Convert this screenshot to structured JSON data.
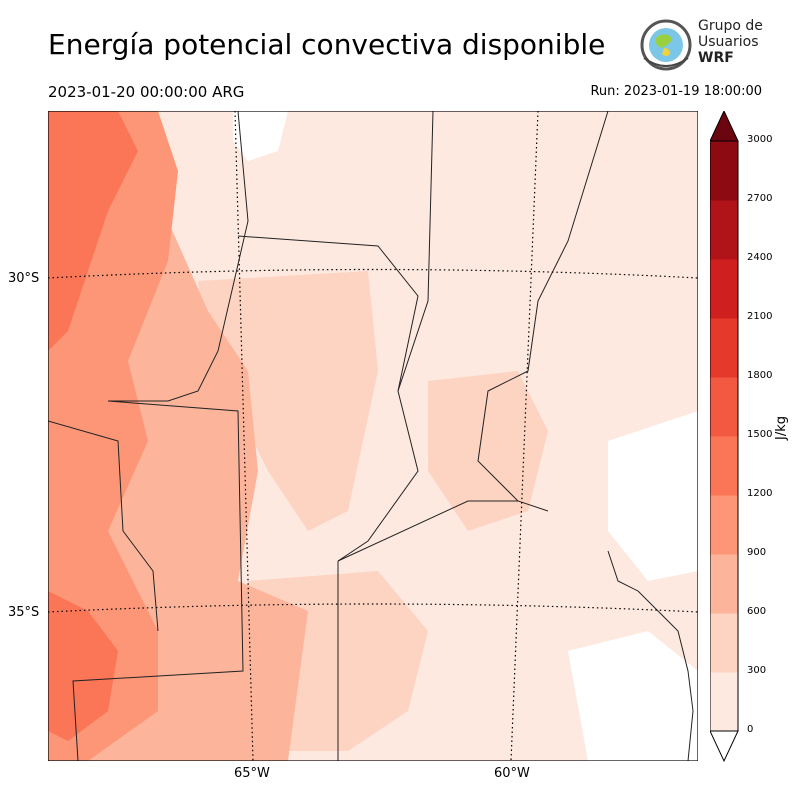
{
  "header": {
    "title": "Energía potencial convectiva disponible",
    "valid_time": "2023-01-20 00:00:00 ARG",
    "run_time": "Run: 2023-01-19 18:00:00"
  },
  "logo": {
    "line1": "Grupo de",
    "line2": "Usuarios",
    "line3": "WRF"
  },
  "map": {
    "lat_labels": [
      "30°S",
      "35°S"
    ],
    "lon_labels": [
      "65°W",
      "60°W"
    ]
  },
  "colorbar": {
    "unit": "J/kg",
    "ticks": [
      "3000",
      "2700",
      "2400",
      "2100",
      "1800",
      "1500",
      "1200",
      "900",
      "600",
      "300",
      "0"
    ],
    "colors": [
      "#fee9e0",
      "#fdd3c2",
      "#fcb59b",
      "#fc9676",
      "#fa7657",
      "#f35840",
      "#e53a2b",
      "#cf1f1f",
      "#b01419",
      "#8d0a12",
      "#6b0510"
    ]
  }
}
